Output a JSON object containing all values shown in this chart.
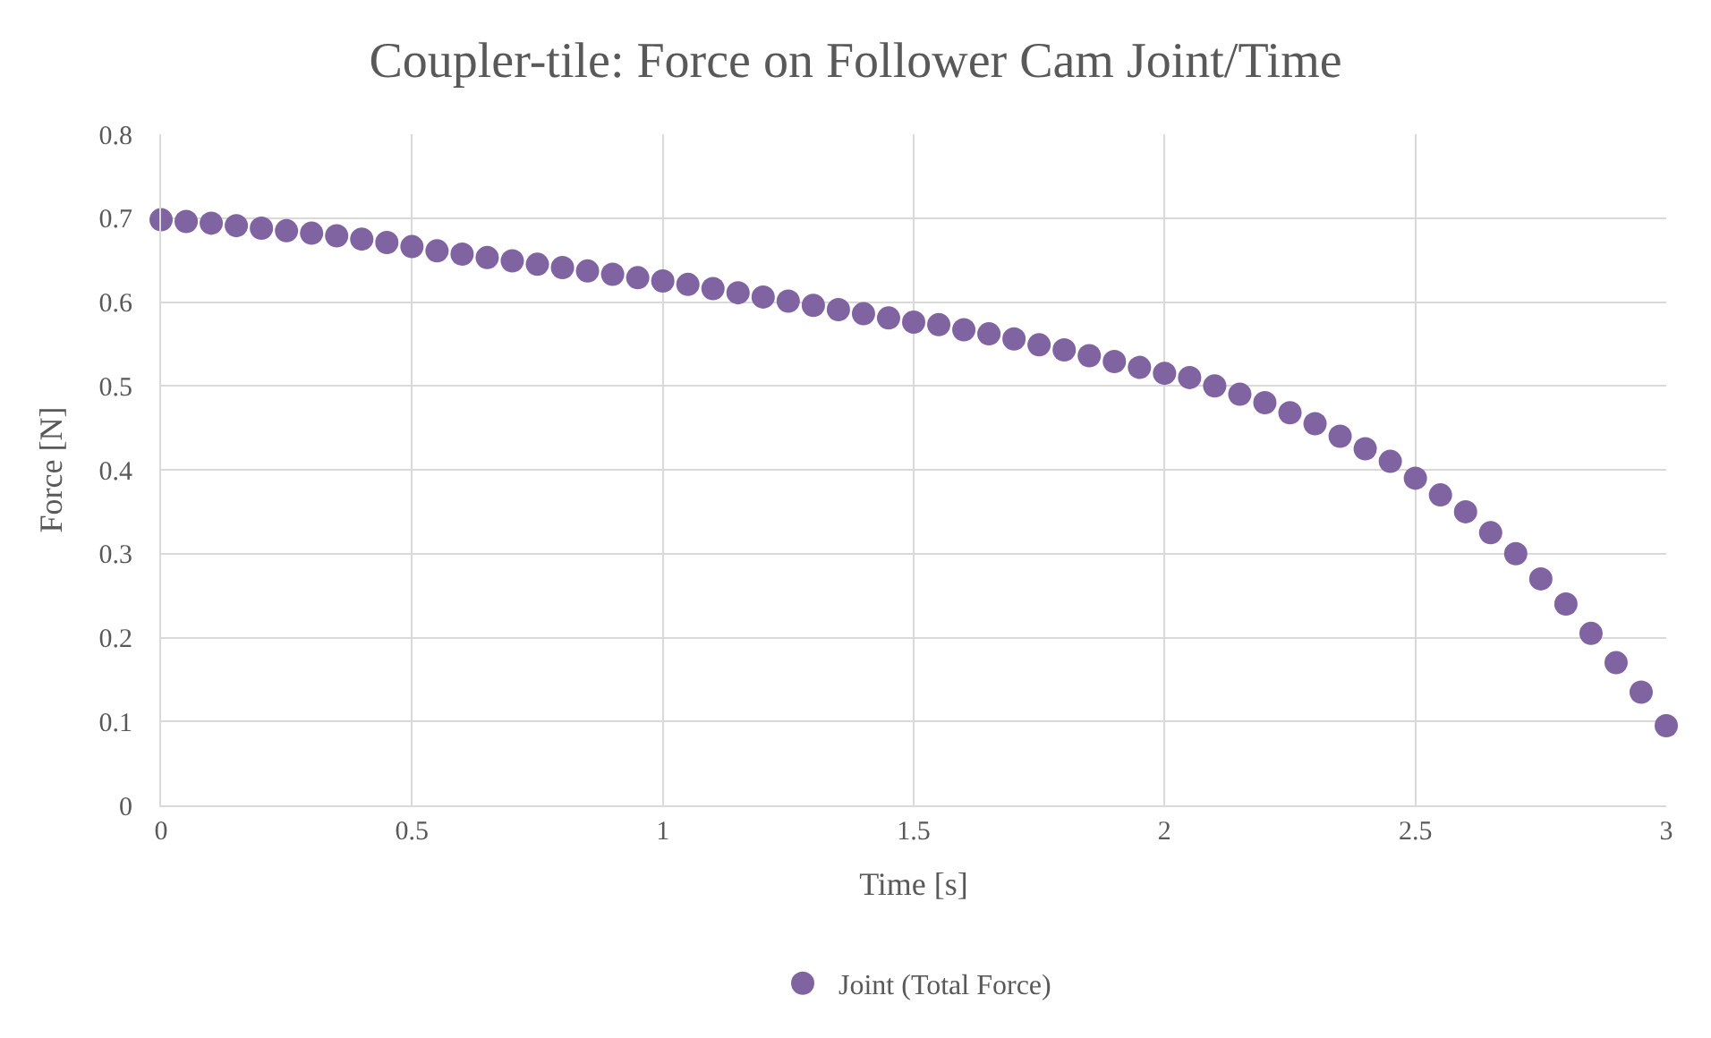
{
  "chart_data": {
    "type": "scatter",
    "title": "Coupler-tile: Force on Follower Cam Joint/Time",
    "xlabel": "Time [s]",
    "ylabel": "Force [N]",
    "x": [
      0,
      0.05,
      0.1,
      0.15,
      0.2,
      0.25,
      0.3,
      0.35,
      0.4,
      0.45,
      0.5,
      0.55,
      0.6,
      0.65,
      0.7,
      0.75,
      0.8,
      0.85,
      0.9,
      0.95,
      1.0,
      1.05,
      1.1,
      1.15,
      1.2,
      1.25,
      1.3,
      1.35,
      1.4,
      1.45,
      1.5,
      1.55,
      1.6,
      1.65,
      1.7,
      1.75,
      1.8,
      1.85,
      1.9,
      1.95,
      2.0,
      2.05,
      2.1,
      2.15,
      2.2,
      2.25,
      2.3,
      2.35,
      2.4,
      2.45,
      2.5,
      2.55,
      2.6,
      2.65,
      2.7,
      2.75,
      2.8,
      2.85,
      2.9,
      2.95,
      3.0
    ],
    "series": [
      {
        "name": "Joint (Total Force)",
        "color": "#8064a2",
        "values": [
          0.698,
          0.696,
          0.694,
          0.691,
          0.688,
          0.685,
          0.682,
          0.679,
          0.675,
          0.671,
          0.666,
          0.661,
          0.657,
          0.653,
          0.649,
          0.645,
          0.641,
          0.637,
          0.633,
          0.629,
          0.625,
          0.621,
          0.616,
          0.611,
          0.606,
          0.601,
          0.596,
          0.591,
          0.586,
          0.581,
          0.576,
          0.573,
          0.567,
          0.562,
          0.556,
          0.549,
          0.543,
          0.536,
          0.529,
          0.522,
          0.515,
          0.51,
          0.5,
          0.49,
          0.48,
          0.468,
          0.455,
          0.44,
          0.425,
          0.41,
          0.39,
          0.37,
          0.35,
          0.325,
          0.3,
          0.27,
          0.24,
          0.205,
          0.17,
          0.135,
          0.095
        ]
      }
    ],
    "xlim": [
      0,
      3
    ],
    "xticks": [
      0,
      0.5,
      1,
      1.5,
      2,
      2.5,
      3
    ],
    "ylim": [
      0,
      0.8
    ],
    "yticks": [
      0,
      0.1,
      0.2,
      0.3,
      0.4,
      0.5,
      0.6,
      0.7,
      0.8
    ],
    "grid": true,
    "legend": "bottom",
    "marker": "circle"
  }
}
